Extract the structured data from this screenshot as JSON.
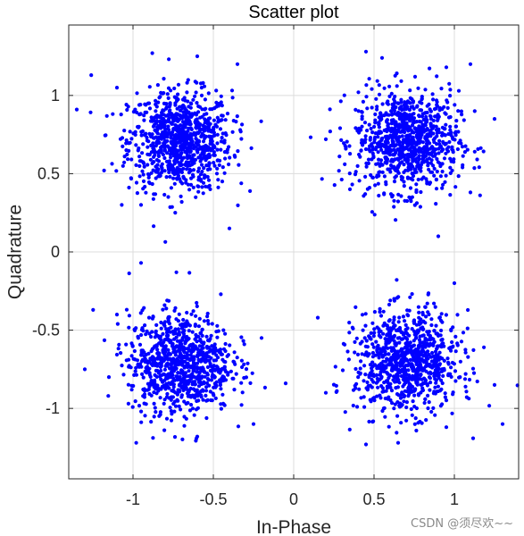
{
  "chart_data": {
    "type": "scatter",
    "title": "Scatter plot",
    "xlabel": "In-Phase",
    "ylabel": "Quadrature",
    "xlim": [
      -1.4,
      1.4
    ],
    "ylim": [
      -1.45,
      1.45
    ],
    "xticks": [
      -1,
      -0.5,
      0,
      0.5,
      1
    ],
    "xtick_labels": [
      "-1",
      "-0.5",
      "0",
      "0.5",
      "1"
    ],
    "yticks": [
      -1,
      -0.5,
      0,
      0.5,
      1
    ],
    "ytick_labels": [
      "-1",
      "-0.5",
      "0",
      "0.5",
      "1"
    ],
    "grid": true,
    "marker_color": "#0000ff",
    "clusters": [
      {
        "center": [
          -0.7071,
          0.7071
        ],
        "spread": 0.16,
        "count": 900
      },
      {
        "center": [
          0.7071,
          0.7071
        ],
        "spread": 0.16,
        "count": 900
      },
      {
        "center": [
          -0.7071,
          -0.7071
        ],
        "spread": 0.16,
        "count": 900
      },
      {
        "center": [
          0.7071,
          -0.7071
        ],
        "spread": 0.16,
        "count": 900
      }
    ],
    "outliers": [
      [
        -1.26,
        1.13
      ],
      [
        -1.35,
        0.91
      ],
      [
        -0.88,
        1.27
      ],
      [
        -0.6,
        1.25
      ],
      [
        -0.35,
        1.2
      ],
      [
        -1.1,
        1.05
      ],
      [
        0.55,
        1.24
      ],
      [
        0.95,
        1.18
      ],
      [
        1.1,
        1.2
      ],
      [
        0.45,
        1.28
      ],
      [
        0.2,
        0.72
      ],
      [
        1.25,
        0.85
      ],
      [
        -1.18,
        0.52
      ],
      [
        -0.4,
        0.15
      ],
      [
        -0.95,
        0.3
      ],
      [
        0.35,
        0.4
      ],
      [
        0.9,
        0.1
      ],
      [
        1.1,
        0.38
      ],
      [
        -0.95,
        -0.07
      ],
      [
        -0.73,
        -0.13
      ],
      [
        -1.1,
        -0.4
      ],
      [
        -0.2,
        -0.55
      ],
      [
        0.15,
        -0.42
      ],
      [
        1.0,
        -0.2
      ],
      [
        -0.05,
        -0.84
      ],
      [
        -1.15,
        -0.8
      ],
      [
        -0.98,
        -1.22
      ],
      [
        -0.25,
        -1.1
      ],
      [
        -0.6,
        -1.18
      ],
      [
        -1.3,
        -0.75
      ],
      [
        0.2,
        -0.9
      ],
      [
        1.3,
        -1.1
      ],
      [
        0.45,
        -1.23
      ],
      [
        1.25,
        -0.85
      ],
      [
        0.95,
        -1.12
      ],
      [
        0.65,
        -1.22
      ]
    ]
  },
  "watermark": "CSDN @须尽欢~~"
}
